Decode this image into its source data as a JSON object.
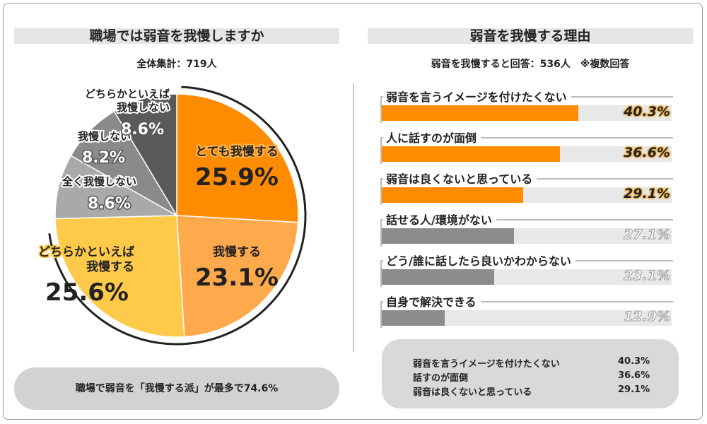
{
  "left_panel": {
    "title": "職場では弱音を我慢しますか",
    "subtitle": "全体集計：719人",
    "summary": "職場で弱音を「我慢する派」が最多で74.6%"
  },
  "right_panel": {
    "title": "弱音を我慢する理由",
    "subtitle": "弱音を我慢すると回答：536人　※複数回答",
    "summary_rows": [
      {
        "label": "弱音を言うイメージを付けたくない",
        "value": "40.3%"
      },
      {
        "label": "話すのが面倒",
        "value": "36.6%"
      },
      {
        "label": "弱音は良くないと思っている",
        "value": "29.1%"
      }
    ]
  },
  "chart_data": [
    {
      "type": "pie",
      "title": "職場では弱音を我慢しますか",
      "slices": [
        {
          "label": "とても我慢する",
          "value": 25.9,
          "display": "25.9%",
          "color": "#ff8c00"
        },
        {
          "label": "我慢する",
          "value": 23.1,
          "display": "23.1%",
          "color": "#ffa94d"
        },
        {
          "label": "どちらかといえば我慢する",
          "value": 25.6,
          "display": "25.6%",
          "color": "#ffc94a"
        },
        {
          "label": "全く我慢しない",
          "value": 8.6,
          "display": "8.6%",
          "color": "#a9a9a9"
        },
        {
          "label": "我慢しない",
          "value": 8.2,
          "display": "8.2%",
          "color": "#8a8a8a"
        },
        {
          "label": "どちらかといえば我慢しない",
          "value": 8.6,
          "display": "8.6%",
          "color": "#5a5a5a"
        }
      ]
    },
    {
      "type": "bar",
      "title": "弱音を我慢する理由",
      "orientation": "horizontal",
      "xlim": [
        0,
        50
      ],
      "bars": [
        {
          "label": "弱音を言うイメージを付けたくない",
          "value": 40.3,
          "display": "40.3%",
          "color": "#ff8c00"
        },
        {
          "label": "人に話すのが面倒",
          "value": 36.6,
          "display": "36.6%",
          "color": "#ff8c00"
        },
        {
          "label": "弱音は良くないと思っている",
          "value": 29.1,
          "display": "29.1%",
          "color": "#ff8c00"
        },
        {
          "label": "話せる人/環境がない",
          "value": 27.1,
          "display": "27.1%",
          "color": "#8c8c8c"
        },
        {
          "label": "どう/誰に話したら良いかわからない",
          "value": 23.1,
          "display": "23.1%",
          "color": "#8c8c8c"
        },
        {
          "label": "自身で解決できる",
          "value": 12.9,
          "display": "12.9%",
          "color": "#8c8c8c"
        }
      ]
    }
  ]
}
